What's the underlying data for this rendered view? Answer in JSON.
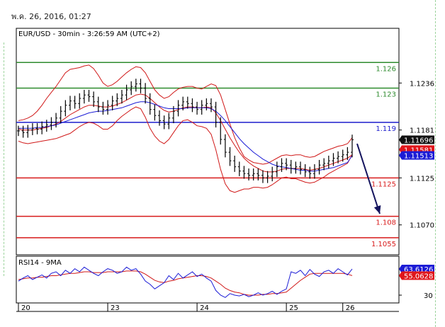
{
  "header": {
    "date": "พ.ค. 26, 2016, 01:27"
  },
  "chart_data": [
    {
      "type": "line",
      "title": "EUR/USD - 30min - 3:26:59 AM (UTC+2)",
      "x_tick_labels": [
        "20",
        "23",
        "24",
        "25",
        "26"
      ],
      "y_tick_labels": [
        "1.1236",
        "1.1181",
        "1.1125",
        "1.1070"
      ],
      "y_range": [
        1.1035,
        1.13
      ],
      "levels": [
        {
          "label": "1.126",
          "value": 1.126,
          "color": "#2e8b2e"
        },
        {
          "label": "1.123",
          "value": 1.123,
          "color": "#2e8b2e"
        },
        {
          "label": "1.119",
          "value": 1.119,
          "color": "#1c1ccc"
        },
        {
          "label": "1.1125",
          "value": 1.1125,
          "color": "#d81b1b"
        },
        {
          "label": "1.108",
          "value": 1.108,
          "color": "#d81b1b"
        },
        {
          "label": "1.1055",
          "value": 1.1055,
          "color": "#d81b1b"
        }
      ],
      "price_tags": [
        {
          "label": "1.11696",
          "value": 1.11696,
          "bg": "#111111"
        },
        {
          "label": "1.11581",
          "value": 1.11581,
          "bg": "#e0161b"
        },
        {
          "label": "1.11513",
          "value": 1.11513,
          "bg": "#1b1bd6"
        }
      ],
      "series": [
        {
          "key": "price",
          "values": [
            1.118,
            1.1178,
            1.1181,
            1.1183,
            1.1182,
            1.1185,
            1.1187,
            1.119,
            1.1195,
            1.1203,
            1.121,
            1.1215,
            1.1212,
            1.1218,
            1.1222,
            1.122,
            1.1214,
            1.1208,
            1.1205,
            1.121,
            1.1215,
            1.1218,
            1.1222,
            1.1228,
            1.1232,
            1.1235,
            1.123,
            1.1218,
            1.1205,
            1.1198,
            1.1192,
            1.1188,
            1.1195,
            1.1203,
            1.121,
            1.1214,
            1.1212,
            1.1208,
            1.1205,
            1.121,
            1.1212,
            1.1208,
            1.119,
            1.117,
            1.1155,
            1.1145,
            1.1138,
            1.1133,
            1.113,
            1.1128,
            1.113,
            1.1128,
            1.1125,
            1.1127,
            1.1132,
            1.1138,
            1.1142,
            1.114,
            1.1136,
            1.1138,
            1.1135,
            1.1132,
            1.113,
            1.1135,
            1.114,
            1.1142,
            1.1145,
            1.1148,
            1.115,
            1.1152,
            1.1155,
            1.11696
          ]
        },
        {
          "key": "bb_upper",
          "values": [
            1.1192,
            1.1193,
            1.1195,
            1.1198,
            1.1203,
            1.121,
            1.1218,
            1.1225,
            1.1232,
            1.124,
            1.1248,
            1.1252,
            1.1253,
            1.1254,
            1.1256,
            1.1257,
            1.1253,
            1.1245,
            1.1236,
            1.1232,
            1.1234,
            1.1238,
            1.1243,
            1.1248,
            1.1252,
            1.1255,
            1.1254,
            1.1248,
            1.1238,
            1.1228,
            1.1222,
            1.1218,
            1.122,
            1.1225,
            1.1229,
            1.1231,
            1.1232,
            1.1232,
            1.123,
            1.1229,
            1.1232,
            1.1235,
            1.1233,
            1.1222,
            1.1205,
            1.1188,
            1.1172,
            1.116,
            1.115,
            1.1146,
            1.1143,
            1.1142,
            1.1141,
            1.1142,
            1.1145,
            1.1148,
            1.1151,
            1.1152,
            1.1151,
            1.1152,
            1.1152,
            1.115,
            1.1149,
            1.115,
            1.1153,
            1.1156,
            1.1158,
            1.116,
            1.1162,
            1.1163,
            1.1165,
            1.1172
          ]
        },
        {
          "key": "bb_lower",
          "values": [
            1.1168,
            1.1166,
            1.1165,
            1.1166,
            1.1167,
            1.1168,
            1.1169,
            1.117,
            1.1171,
            1.1173,
            1.1175,
            1.1177,
            1.1181,
            1.1185,
            1.1188,
            1.119,
            1.1189,
            1.1186,
            1.1182,
            1.1182,
            1.1186,
            1.1192,
            1.1197,
            1.1201,
            1.1205,
            1.1208,
            1.1206,
            1.1196,
            1.1183,
            1.1174,
            1.1168,
            1.1165,
            1.117,
            1.1178,
            1.1186,
            1.1192,
            1.1193,
            1.119,
            1.1186,
            1.1185,
            1.1183,
            1.1176,
            1.1158,
            1.1135,
            1.1118,
            1.111,
            1.1108,
            1.111,
            1.1112,
            1.1112,
            1.1114,
            1.1114,
            1.1113,
            1.1114,
            1.1117,
            1.1121,
            1.1125,
            1.1126,
            1.1124,
            1.1124,
            1.1122,
            1.112,
            1.1119,
            1.112,
            1.1123,
            1.1126,
            1.113,
            1.1133,
            1.1136,
            1.1139,
            1.1142,
            1.1152
          ]
        },
        {
          "key": "ma_fast",
          "values": [
            1.1182,
            1.1181,
            1.1181,
            1.1181,
            1.1182,
            1.1183,
            1.1184,
            1.1186,
            1.1188,
            1.1191,
            1.1195,
            1.1199,
            1.1202,
            1.1205,
            1.1208,
            1.121,
            1.121,
            1.1209,
            1.1208,
            1.1208,
            1.1209,
            1.1211,
            1.1213,
            1.1216,
            1.1219,
            1.1222,
            1.1223,
            1.1222,
            1.1218,
            1.1213,
            1.1208,
            1.1204,
            1.1202,
            1.1203,
            1.1205,
            1.1207,
            1.1208,
            1.1208,
            1.1207,
            1.1207,
            1.1208,
            1.1207,
            1.1201,
            1.1192,
            1.1182,
            1.1172,
            1.1163,
            1.1155,
            1.1148,
            1.1143,
            1.1139,
            1.1136,
            1.1133,
            1.1132,
            1.1132,
            1.1133,
            1.1135,
            1.1136,
            1.1136,
            1.1136,
            1.1136,
            1.1135,
            1.1134,
            1.1135,
            1.1136,
            1.1138,
            1.114,
            1.1142,
            1.1144,
            1.1146,
            1.1148,
            1.1152
          ]
        },
        {
          "key": "ma_slow",
          "values": [
            1.1183,
            1.1183,
            1.1183,
            1.1183,
            1.1184,
            1.1184,
            1.1185,
            1.1186,
            1.1187,
            1.1189,
            1.1191,
            1.1193,
            1.1195,
            1.1197,
            1.1199,
            1.1201,
            1.1202,
            1.1203,
            1.1203,
            1.1204,
            1.1205,
            1.1206,
            1.1207,
            1.1209,
            1.1211,
            1.1213,
            1.1214,
            1.1214,
            1.1213,
            1.1211,
            1.1209,
            1.1207,
            1.1206,
            1.1206,
            1.1206,
            1.1206,
            1.1207,
            1.1207,
            1.1207,
            1.1207,
            1.1207,
            1.1206,
            1.1203,
            1.1198,
            1.1192,
            1.1185,
            1.1178,
            1.1171,
            1.1165,
            1.116,
            1.1155,
            1.1151,
            1.1147,
            1.1144,
            1.1141,
            1.1139,
            1.1138,
            1.1137,
            1.1136,
            1.1135,
            1.1134,
            1.1134,
            1.1133,
            1.1133,
            1.1134,
            1.1135,
            1.1136,
            1.1137,
            1.1139,
            1.1141,
            1.1143,
            1.11513
          ]
        }
      ],
      "arrow": {
        "from_value": 1.1165,
        "to_value": 1.1083
      }
    },
    {
      "type": "line",
      "title": "RSI14 - 9MA",
      "y_tick_labels": [
        "30"
      ],
      "y_range": [
        20,
        80
      ],
      "value_tags": [
        {
          "label": "63.6126",
          "value": 63.6126,
          "bg": "#1b1bd6"
        },
        {
          "label": "55.0628",
          "value": 55.0628,
          "bg": "#e0161b"
        }
      ],
      "series": [
        {
          "key": "rsi",
          "values": [
            48,
            52,
            55,
            50,
            53,
            56,
            52,
            58,
            60,
            55,
            62,
            58,
            64,
            60,
            66,
            62,
            58,
            55,
            60,
            64,
            62,
            58,
            60,
            66,
            62,
            64,
            57,
            48,
            44,
            38,
            42,
            46,
            55,
            50,
            58,
            52,
            56,
            60,
            54,
            57,
            52,
            48,
            36,
            30,
            27,
            32,
            30,
            29,
            31,
            28,
            30,
            33,
            30,
            32,
            35,
            31,
            35,
            38,
            60,
            58,
            62,
            55,
            63,
            57,
            54,
            60,
            62,
            58,
            64,
            60,
            56,
            63.6126
          ]
        },
        {
          "key": "rsi_ma",
          "values": [
            50,
            51,
            52,
            52,
            53,
            53,
            54,
            55,
            55,
            56,
            57,
            58,
            58,
            59,
            60,
            60,
            59,
            59,
            59,
            60,
            60,
            60,
            60,
            61,
            61,
            61,
            60,
            57,
            53,
            49,
            47,
            46,
            48,
            49,
            51,
            52,
            53,
            54,
            55,
            55,
            54,
            52,
            48,
            44,
            39,
            36,
            34,
            33,
            31,
            30,
            30,
            30,
            31,
            31,
            32,
            32,
            33,
            34,
            39,
            44,
            49,
            53,
            57,
            58,
            58,
            58,
            58,
            58,
            58,
            58,
            57,
            55.0628
          ]
        }
      ]
    }
  ]
}
